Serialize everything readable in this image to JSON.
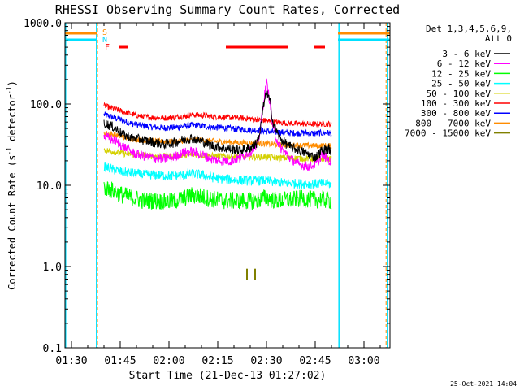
{
  "chart_data": {
    "type": "line",
    "title": "RHESSI Observing Summary Count Rates, Corrected",
    "xlabel": "Start Time (21-Dec-13 01:27:02)",
    "ylabel_parts": [
      "Corrected Count Rate (s",
      "-1",
      " detector",
      "-1",
      ")"
    ],
    "yscale": "log",
    "ylim": [
      0.1,
      1000
    ],
    "yticks": [
      {
        "value": 0.1,
        "label": "0.1"
      },
      {
        "value": 1,
        "label": "1.0"
      },
      {
        "value": 10,
        "label": "10.0"
      },
      {
        "value": 100,
        "label": "100.0"
      },
      {
        "value": 1000,
        "label": "1000.0"
      }
    ],
    "xlim_minutes": [
      88,
      188
    ],
    "xticks": [
      {
        "minutes": 90,
        "label": "01:30"
      },
      {
        "minutes": 105,
        "label": "01:45"
      },
      {
        "minutes": 120,
        "label": "02:00"
      },
      {
        "minutes": 135,
        "label": "02:15"
      },
      {
        "minutes": 150,
        "label": "02:30"
      },
      {
        "minutes": 165,
        "label": "02:45"
      },
      {
        "minutes": 180,
        "label": "03:00"
      }
    ],
    "legend_header": [
      "Det 1,3,4,5,6,9,",
      "Att 0"
    ],
    "legend_position": "right",
    "flag_labels": {
      "S": "S",
      "N": "N",
      "F": "F"
    },
    "flags": {
      "saa_intervals": [
        [
          88,
          98
        ],
        [
          172,
          188
        ]
      ],
      "night_intervals": [
        [
          88,
          98
        ],
        [
          172,
          188
        ]
      ],
      "flare_intervals": [
        [
          104.5,
          107.5
        ],
        [
          137.5,
          156.5
        ],
        [
          164.5,
          168
        ]
      ]
    },
    "night_boundaries": [
      88.2,
      97.7,
      172.3,
      187.2
    ],
    "saa_boundaries": [
      98.0,
      186.8
    ],
    "time_minutes": [
      100,
      103,
      106,
      109,
      112,
      115,
      118,
      121,
      124,
      127,
      130,
      133,
      136,
      139,
      142,
      145,
      147,
      148,
      149,
      150,
      151,
      152,
      154,
      157,
      160,
      163,
      165,
      166,
      167,
      169,
      170
    ],
    "series": [
      {
        "name": "3 - 6 keV",
        "color": "#000000",
        "values": [
          58,
          52,
          42,
          38,
          36,
          34,
          32,
          33,
          36,
          38,
          35,
          31,
          29,
          28,
          27,
          29,
          33,
          45,
          90,
          140,
          110,
          60,
          38,
          30,
          27,
          24,
          22,
          24,
          27,
          28,
          26
        ]
      },
      {
        "name": "6 - 12 keV",
        "color": "#ff00ff",
        "values": [
          40,
          36,
          30,
          25,
          23,
          22,
          21,
          22,
          25,
          26,
          24,
          21,
          20,
          20,
          22,
          26,
          30,
          45,
          100,
          185,
          110,
          50,
          30,
          22,
          18,
          17,
          18,
          20,
          24,
          21,
          18
        ]
      },
      {
        "name": "12 - 25 keV",
        "color": "#00ff00",
        "values": [
          9.5,
          8.5,
          7.5,
          7,
          6.5,
          6.5,
          6.3,
          6.3,
          6.8,
          7.5,
          7.3,
          6.8,
          6.5,
          6.4,
          6.5,
          6.4,
          6.5,
          6.7,
          7,
          7,
          6.8,
          6.6,
          6.5,
          6.6,
          6.8,
          6.8,
          6.6,
          6.7,
          6.8,
          6.5,
          6.4
        ]
      },
      {
        "name": "25 - 50 keV",
        "color": "#00ffff",
        "values": [
          17,
          15.5,
          14.5,
          14,
          13.5,
          13.5,
          13.2,
          13,
          13.2,
          13.8,
          13.5,
          12.5,
          12,
          11.8,
          11.5,
          11.3,
          11.3,
          11.4,
          11.5,
          11.4,
          11.2,
          11,
          10.8,
          10.6,
          10.5,
          10.4,
          10.4,
          10.5,
          10.5,
          10.4,
          10.3
        ]
      },
      {
        "name": "50 - 100 keV",
        "color": "#d4d000",
        "values": [
          27,
          26,
          24.5,
          24,
          23.5,
          23,
          22.8,
          22.8,
          23.2,
          23.8,
          23.5,
          23,
          22.8,
          22.6,
          22.4,
          22.3,
          22.3,
          22.4,
          22.4,
          22.3,
          22.2,
          22,
          21.8,
          21.6,
          21.5,
          21.3,
          21.2,
          21.3,
          21.3,
          21.2,
          21.1
        ]
      },
      {
        "name": "100 - 300 keV",
        "color": "#ff0000",
        "values": [
          95,
          88,
          80,
          74,
          70,
          68,
          67,
          68,
          70,
          74,
          73,
          70,
          69,
          68,
          67,
          66,
          65,
          64,
          63,
          62,
          61,
          60,
          59,
          58,
          57,
          57,
          56,
          57,
          57,
          57,
          56
        ]
      },
      {
        "name": "300 - 800 keV",
        "color": "#0000ff",
        "values": [
          74,
          68,
          62,
          57,
          54,
          52,
          51,
          51,
          53,
          55,
          54,
          52,
          51,
          50,
          49,
          48,
          48,
          47,
          47,
          46,
          46,
          45,
          45,
          44,
          44,
          44,
          43,
          44,
          44,
          44,
          43
        ]
      },
      {
        "name": "800 - 7000 keV",
        "color": "#ff8c00",
        "values": [
          44,
          42,
          39,
          37,
          36,
          35,
          34.5,
          34.5,
          35,
          36.5,
          36,
          35,
          34.5,
          34,
          33.5,
          33,
          33,
          32.8,
          32.6,
          32.4,
          32.2,
          32,
          31.6,
          31.2,
          31,
          30.8,
          30.5,
          30.8,
          30.8,
          30.6,
          30.4
        ]
      },
      {
        "name": "7000 - 15000 keV",
        "color": "#808000",
        "values": [
          null,
          null,
          null,
          null,
          null,
          null,
          null,
          null,
          null,
          null,
          null,
          null,
          null,
          null,
          null,
          null,
          null,
          null,
          null,
          null,
          null,
          null,
          null,
          null,
          null,
          null,
          null,
          null,
          null,
          null,
          null
        ]
      }
    ],
    "isolated_marks": {
      "series": "7000 - 15000 keV",
      "points": [
        [
          144,
          0.8
        ],
        [
          146.5,
          0.8
        ]
      ]
    }
  },
  "footer_date": "25-Oct-2021 14:04"
}
